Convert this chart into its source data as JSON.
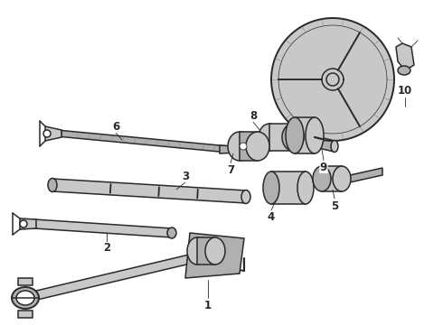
{
  "background_color": "#ffffff",
  "line_color": "#2a2a2a",
  "fig_width": 4.9,
  "fig_height": 3.6,
  "dpi": 100,
  "lw_main": 1.1,
  "lw_thin": 0.6,
  "lw_thick": 1.4,
  "gray_light": "#c8c8c8",
  "gray_mid": "#b0b0b0",
  "gray_dark": "#888888"
}
